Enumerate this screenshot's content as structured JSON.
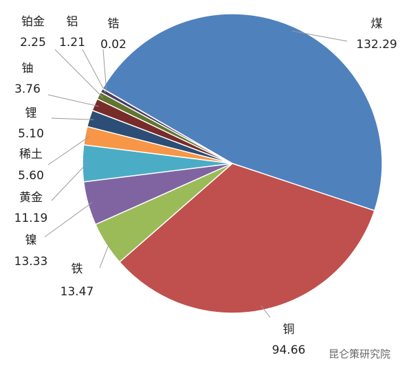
{
  "chart_data": {
    "type": "pie",
    "categories": [
      "煤",
      "铜",
      "铁",
      "镍",
      "黄金",
      "稀土",
      "锂",
      "铀",
      "铂金",
      "铝",
      "锆"
    ],
    "values": [
      132.29,
      94.66,
      13.47,
      13.33,
      11.19,
      5.6,
      5.1,
      3.76,
      2.25,
      1.21,
      0.02
    ],
    "value_labels": [
      "132.29",
      "94.66",
      "13.47",
      "13.33",
      "11.19",
      "5.60",
      "5.10",
      "3.76",
      "2.25",
      "1.21",
      "0.02"
    ],
    "colors": [
      "#4f81bd",
      "#c0504d",
      "#9bbb59",
      "#8064a2",
      "#4bacc6",
      "#f79646",
      "#2c4d75",
      "#772c2a",
      "#5f7530",
      "#4d3b62",
      "#276a7c"
    ],
    "watermark": "昆仑策研究院"
  }
}
